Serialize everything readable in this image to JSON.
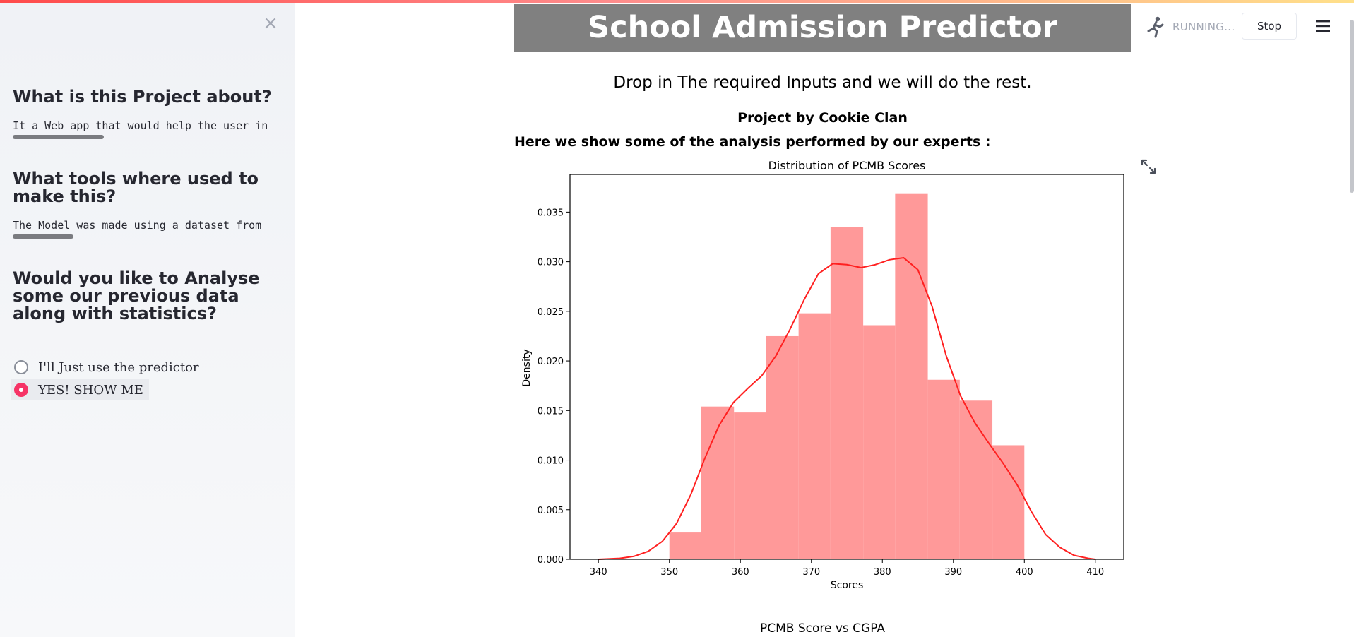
{
  "sidebar": {
    "close_icon": "close-icon",
    "sections": [
      {
        "heading": "What is this Project about?",
        "code_text": "It a Web app that would help the user in"
      },
      {
        "heading": "What tools where used to make this?",
        "code_text": "The Model was made using a dataset from"
      }
    ],
    "question": "Would you like to Analyse some our previous data along with statistics?",
    "radio_options": [
      "I'll Just use the predictor",
      "YES! SHOW ME"
    ],
    "radio_selected": "YES! SHOW ME",
    "accent_color": "#f63366"
  },
  "header": {
    "status": "RUNNING...",
    "stop_label": "Stop",
    "status_icon": "running-man-icon",
    "menu_icon": "hamburger-menu-icon"
  },
  "main": {
    "title": "School Admission Predictor",
    "subtitle": "Drop in The required Inputs and we will do the rest.",
    "byline": "Project by Cookie Clan",
    "analysis_note": "Here we show some of the analysis performed by our experts :",
    "expand_icon": "fullscreen-expand-icon",
    "next_chart_title": "PCMB Score vs CGPA"
  },
  "chart_data": {
    "type": "bar",
    "title": "Distribution of PCMB Scores",
    "xlabel": "Scores",
    "ylabel": "Density",
    "xlim": [
      336,
      414
    ],
    "ylim": [
      0,
      0.0388
    ],
    "xticks": [
      340,
      350,
      360,
      370,
      380,
      390,
      400,
      410
    ],
    "yticks": [
      0.0,
      0.005,
      0.01,
      0.015,
      0.02,
      0.025,
      0.03,
      0.035
    ],
    "ytick_labels": [
      "0.000",
      "0.005",
      "0.010",
      "0.015",
      "0.020",
      "0.025",
      "0.030",
      "0.035"
    ],
    "bar_color": "#ff9999",
    "line_color": "#ff2020",
    "bins": [
      {
        "x0": 350.0,
        "x1": 354.5,
        "value": 0.0027
      },
      {
        "x0": 354.5,
        "x1": 359.1,
        "value": 0.0154
      },
      {
        "x0": 359.1,
        "x1": 363.6,
        "value": 0.0148
      },
      {
        "x0": 363.6,
        "x1": 368.2,
        "value": 0.0225
      },
      {
        "x0": 368.2,
        "x1": 372.7,
        "value": 0.0248
      },
      {
        "x0": 372.7,
        "x1": 377.3,
        "value": 0.0335
      },
      {
        "x0": 377.3,
        "x1": 381.8,
        "value": 0.0236
      },
      {
        "x0": 381.8,
        "x1": 386.4,
        "value": 0.0369
      },
      {
        "x0": 386.4,
        "x1": 390.9,
        "value": 0.0181
      },
      {
        "x0": 390.9,
        "x1": 395.5,
        "value": 0.016
      },
      {
        "x0": 395.5,
        "x1": 400.0,
        "value": 0.0115
      }
    ],
    "kde": {
      "x": [
        340,
        343,
        345,
        347,
        349,
        351,
        353,
        355,
        357,
        359,
        361,
        363,
        365,
        367,
        369,
        371,
        373,
        375,
        377,
        379,
        381,
        383,
        385,
        387,
        389,
        391,
        393,
        395,
        397,
        399,
        401,
        403,
        405,
        407,
        409,
        410
      ],
      "y": [
        0.0,
        0.0001,
        0.0003,
        0.0008,
        0.0018,
        0.0036,
        0.0065,
        0.0102,
        0.0135,
        0.0158,
        0.0172,
        0.0185,
        0.0205,
        0.0232,
        0.0262,
        0.0288,
        0.0298,
        0.0297,
        0.0294,
        0.0297,
        0.0302,
        0.0304,
        0.0292,
        0.0255,
        0.0205,
        0.0165,
        0.0138,
        0.0117,
        0.0097,
        0.0075,
        0.0048,
        0.0025,
        0.0012,
        0.0004,
        0.0001,
        0.0
      ]
    }
  }
}
